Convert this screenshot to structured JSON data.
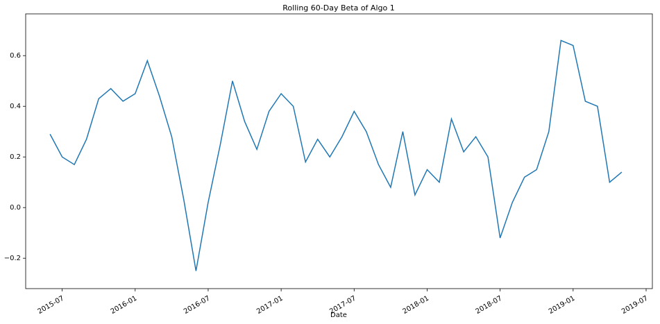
{
  "chart_data": {
    "type": "line",
    "title": "Rolling 60-Day Beta of Algo 1",
    "x_label": "Date",
    "x": [
      "2015-06",
      "2015-07",
      "2015-08",
      "2015-09",
      "2015-10",
      "2015-11",
      "2015-12",
      "2016-01",
      "2016-02",
      "2016-03",
      "2016-04",
      "2016-05",
      "2016-06",
      "2016-07",
      "2016-08",
      "2016-09",
      "2016-10",
      "2016-11",
      "2016-12",
      "2017-01",
      "2017-02",
      "2017-03",
      "2017-04",
      "2017-05",
      "2017-06",
      "2017-07",
      "2017-08",
      "2017-09",
      "2017-10",
      "2017-11",
      "2017-12",
      "2018-01",
      "2018-02",
      "2018-03",
      "2018-04",
      "2018-05",
      "2018-06",
      "2018-07",
      "2018-08",
      "2018-09",
      "2018-10",
      "2018-11",
      "2018-12",
      "2019-01",
      "2019-02",
      "2019-03",
      "2019-04",
      "2019-05"
    ],
    "series": [
      {
        "color": "#1f77b4",
        "values": [
          0.29,
          0.2,
          0.17,
          0.27,
          0.43,
          0.47,
          0.42,
          0.45,
          0.58,
          0.44,
          0.28,
          0.03,
          -0.25,
          0.02,
          0.25,
          0.5,
          0.34,
          0.23,
          0.38,
          0.45,
          0.4,
          0.18,
          0.27,
          0.2,
          0.28,
          0.38,
          0.3,
          0.17,
          0.08,
          0.3,
          0.05,
          0.15,
          0.1,
          0.35,
          0.22,
          0.28,
          0.2,
          -0.12,
          0.02,
          0.12,
          0.15,
          0.3,
          0.66,
          0.64,
          0.42,
          0.4,
          0.1,
          0.14
        ]
      }
    ],
    "xlim": [
      "2015-04",
      "2019-07"
    ],
    "xticks": [
      "2015-07",
      "2016-01",
      "2016-07",
      "2017-01",
      "2017-07",
      "2018-01",
      "2018-07",
      "2019-01",
      "2019-07"
    ],
    "ylim": [
      -0.32,
      0.765
    ],
    "yticks": [
      {
        "value": -0.2,
        "label": "−0.2"
      },
      {
        "value": 0,
        "label": "0.0"
      },
      0.2,
      0.4,
      0.6
    ]
  }
}
